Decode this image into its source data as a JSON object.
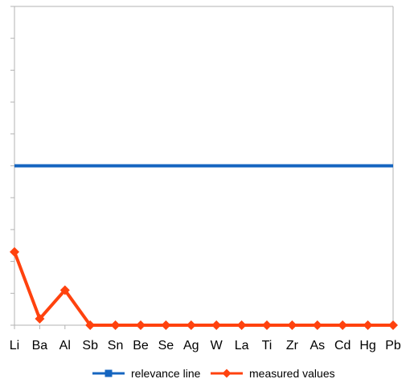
{
  "chart_data": {
    "type": "line",
    "categories": [
      "Li",
      "Ba",
      "Al",
      "Sb",
      "Sn",
      "Be",
      "Se",
      "Ag",
      "W",
      "La",
      "Ti",
      "Zr",
      "As",
      "Cd",
      "Hg",
      "Pb"
    ],
    "ylim": [
      0,
      10
    ],
    "y_gridlines": false,
    "y_minor_ticks": 10,
    "legend_position": "bottom",
    "series": [
      {
        "name": "relevance line",
        "color": "#1565c0",
        "marker": "square",
        "values": [
          5,
          5,
          5,
          5,
          5,
          5,
          5,
          5,
          5,
          5,
          5,
          5,
          5,
          5,
          5,
          5
        ]
      },
      {
        "name": "measured values",
        "color": "#ff420e",
        "marker": "diamond",
        "values": [
          2.3,
          0.2,
          1.1,
          0,
          0,
          0,
          0,
          0,
          0,
          0,
          0,
          0,
          0,
          0,
          0,
          0
        ]
      }
    ]
  }
}
